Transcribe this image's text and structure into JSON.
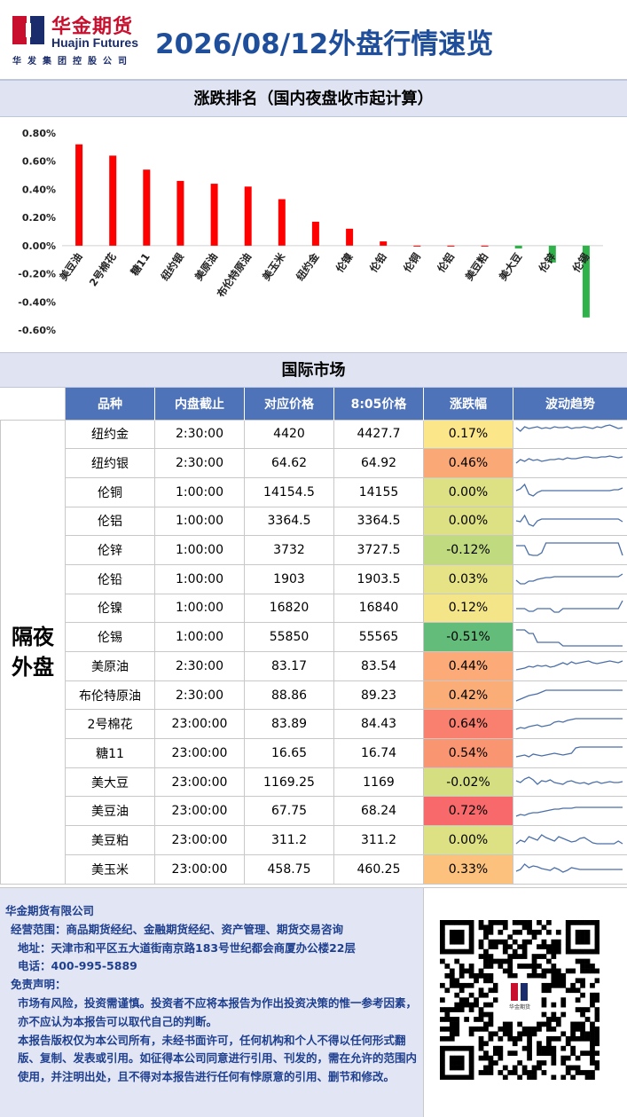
{
  "header": {
    "logo_cn": "华金期货",
    "logo_en": "Huajin Futures",
    "logo_sub": "华发集团控股公司",
    "title": "2026/08/12外盘行情速览"
  },
  "section1_title": "涨跌排名（国内夜盘收市起计算）",
  "chart_data": {
    "type": "bar",
    "categories": [
      "美豆油",
      "2号棉花",
      "糖11",
      "纽约银",
      "美原油",
      "布伦特原油",
      "美玉米",
      "纽约金",
      "伦镍",
      "伦铅",
      "伦铜",
      "伦铝",
      "美豆粕",
      "美大豆",
      "伦锌",
      "伦锡"
    ],
    "values": [
      0.72,
      0.64,
      0.54,
      0.46,
      0.44,
      0.42,
      0.33,
      0.17,
      0.12,
      0.03,
      0.0,
      0.0,
      0.0,
      -0.02,
      -0.12,
      -0.51
    ],
    "yticks": [
      "0.80%",
      "0.60%",
      "0.40%",
      "0.20%",
      "0.00%",
      "-0.20%",
      "-0.40%",
      "-0.60%"
    ],
    "ylim": [
      -0.6,
      0.8
    ],
    "colors": {
      "up": "#ff0000",
      "down": "#2fb24a"
    },
    "grid": false
  },
  "section2_title": "国际市场",
  "table": {
    "headers": [
      "品种",
      "内盘截止",
      "对应价格",
      "8:05价格",
      "涨跌幅",
      "波动趋势"
    ],
    "side_label_line1": "隔夜",
    "side_label_line2": "外盘",
    "rows": [
      {
        "name": "纽约金",
        "close": "2:30:00",
        "price": "4420",
        "price805": "4427.7",
        "change": "0.17%",
        "color": "#fce68a"
      },
      {
        "name": "纽约银",
        "close": "2:30:00",
        "price": "64.62",
        "price805": "64.92",
        "change": "0.46%",
        "color": "#fba877"
      },
      {
        "name": "伦铜",
        "close": "1:00:00",
        "price": "14154.5",
        "price805": "14155",
        "change": "0.00%",
        "color": "#dde183"
      },
      {
        "name": "伦铝",
        "close": "1:00:00",
        "price": "3364.5",
        "price805": "3364.5",
        "change": "0.00%",
        "color": "#dde183"
      },
      {
        "name": "伦锌",
        "close": "1:00:00",
        "price": "3732",
        "price805": "3727.5",
        "change": "-0.12%",
        "color": "#c0da80"
      },
      {
        "name": "伦铅",
        "close": "1:00:00",
        "price": "1903",
        "price805": "1903.5",
        "change": "0.03%",
        "color": "#e6e386"
      },
      {
        "name": "伦镍",
        "close": "1:00:00",
        "price": "16820",
        "price805": "16840",
        "change": "0.12%",
        "color": "#f4e588"
      },
      {
        "name": "伦锡",
        "close": "1:00:00",
        "price": "55850",
        "price805": "55565",
        "change": "-0.51%",
        "color": "#64bc7b"
      },
      {
        "name": "美原油",
        "close": "2:30:00",
        "price": "83.17",
        "price805": "83.54",
        "change": "0.44%",
        "color": "#fbaa78"
      },
      {
        "name": "布伦特原油",
        "close": "2:30:00",
        "price": "88.86",
        "price805": "89.23",
        "change": "0.42%",
        "color": "#fbad78"
      },
      {
        "name": "2号棉花",
        "close": "23:00:00",
        "price": "83.89",
        "price805": "84.43",
        "change": "0.64%",
        "color": "#f97f6f"
      },
      {
        "name": "糖11",
        "close": "23:00:00",
        "price": "16.65",
        "price805": "16.74",
        "change": "0.54%",
        "color": "#fa9572"
      },
      {
        "name": "美大豆",
        "close": "23:00:00",
        "price": "1169.25",
        "price805": "1169",
        "change": "-0.02%",
        "color": "#d5df82"
      },
      {
        "name": "美豆油",
        "close": "23:00:00",
        "price": "67.75",
        "price805": "68.24",
        "change": "0.72%",
        "color": "#f8696b"
      },
      {
        "name": "美豆粕",
        "close": "23:00:00",
        "price": "311.2",
        "price805": "311.2",
        "change": "0.00%",
        "color": "#dde183"
      },
      {
        "name": "美玉米",
        "close": "23:00:00",
        "price": "458.75",
        "price805": "460.25",
        "change": "0.33%",
        "color": "#fbc17d"
      }
    ]
  },
  "footer": {
    "company": "华金期货有限公司",
    "scope": "经营范围：商品期货经纪、金融期货经纪、资产管理、期货交易咨询",
    "address": "地址：天津市和平区五大道街南京路183号世纪都会商厦办公楼22层",
    "phone": "电话：400-995-5889",
    "disclaimer_title": "免责声明：",
    "disclaimer_1": "市场有风险，投资需谨慎。投资者不应将本报告为作出投资决策的惟一参考因素，亦不应认为本报告可以取代自己的判断。",
    "disclaimer_2": "本报告版权仅为本公司所有，未经书面许可，任何机构和个人不得以任何形式翻版、复制、发表或引用。如征得本公司同意进行引用、刊发的，需在允许的范围内使用，并注明出处，且不得对本报告进行任何有悖原意的引用、删节和修改。"
  },
  "qr_label": "华金期货"
}
